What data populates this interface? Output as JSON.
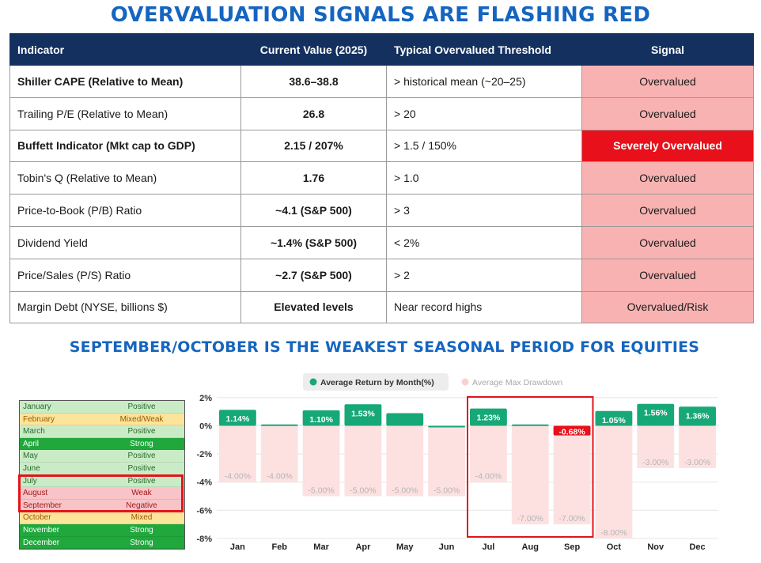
{
  "title": "OVERVALUATION SIGNALS ARE FLASHING RED",
  "table": {
    "headers": [
      "Indicator",
      "Current Value (2025)",
      "Typical Overvalued Threshold",
      "Signal"
    ],
    "rows": [
      {
        "indicator": "Shiller CAPE (Relative to Mean)",
        "value": "38.6–38.8",
        "threshold": "> historical mean (~20–25)",
        "signal": "Overvalued"
      },
      {
        "indicator": "Trailing P/E (Relative to Mean)",
        "value": "26.8",
        "threshold": "> 20",
        "signal": "Overvalued"
      },
      {
        "indicator": "Buffett Indicator (Mkt cap to GDP)",
        "value": "2.15 / 207%",
        "threshold": "> 1.5 / 150%",
        "signal": "Severely Overvalued"
      },
      {
        "indicator": "Tobin's Q (Relative to Mean)",
        "value": "1.76",
        "threshold": "> 1.0",
        "signal": "Overvalued"
      },
      {
        "indicator": "Price-to-Book (P/B) Ratio",
        "value": "~4.1 (S&P 500)",
        "threshold": "> 3",
        "signal": "Overvalued"
      },
      {
        "indicator": "Dividend Yield",
        "value": "~1.4% (S&P 500)",
        "threshold": "< 2%",
        "signal": "Overvalued"
      },
      {
        "indicator": "Price/Sales (P/S) Ratio",
        "value": "~2.7 (S&P 500)",
        "threshold": "> 2",
        "signal": "Overvalued"
      },
      {
        "indicator": "Margin Debt (NYSE, billions $)",
        "value": "Elevated levels",
        "threshold": "Near record highs",
        "signal": "Overvalued/Risk"
      }
    ]
  },
  "subtitle": "SEPTEMBER/OCTOBER IS THE WEAKEST SEASONAL PERIOD FOR EQUITIES",
  "seasonality": [
    {
      "month": "January",
      "status": "Positive",
      "bg": "#c9ecc7",
      "fg": "#2a6a2a"
    },
    {
      "month": "February",
      "status": "Mixed/Weak",
      "bg": "#fce49a",
      "fg": "#9a5a00"
    },
    {
      "month": "March",
      "status": "Positive",
      "bg": "#c9ecc7",
      "fg": "#2a6a2a"
    },
    {
      "month": "April",
      "status": "Strong",
      "bg": "#20a83c",
      "fg": "#ffffff"
    },
    {
      "month": "May",
      "status": "Positive",
      "bg": "#c9ecc7",
      "fg": "#2a6a2a"
    },
    {
      "month": "June",
      "status": "Positive",
      "bg": "#c9ecc7",
      "fg": "#2a6a2a"
    },
    {
      "month": "July",
      "status": "Positive",
      "bg": "#c9ecc7",
      "fg": "#2a6a2a"
    },
    {
      "month": "August",
      "status": "Weak",
      "bg": "#f8c4c8",
      "fg": "#a01818"
    },
    {
      "month": "September",
      "status": "Negative",
      "bg": "#f8c4c8",
      "fg": "#a01818"
    },
    {
      "month": "October",
      "status": "Mixed",
      "bg": "#fce49a",
      "fg": "#9a5a00"
    },
    {
      "month": "November",
      "status": "Strong",
      "bg": "#20a83c",
      "fg": "#ffffff"
    },
    {
      "month": "December",
      "status": "Strong",
      "bg": "#20a83c",
      "fg": "#ffffff"
    }
  ],
  "chart_data": {
    "type": "bar",
    "categories": [
      "Jan",
      "Feb",
      "Mar",
      "Apr",
      "May",
      "Jun",
      "Jul",
      "Aug",
      "Sep",
      "Oct",
      "Nov",
      "Dec"
    ],
    "series": [
      {
        "name": "Average Return by Month(%)",
        "color": "#17a877",
        "values": [
          1.14,
          0.1,
          1.1,
          1.53,
          0.9,
          0.0,
          1.23,
          0.1,
          -0.68,
          1.05,
          1.56,
          1.36
        ],
        "labels": [
          "1.14%",
          "",
          "1.10%",
          "1.53%",
          "",
          "",
          "1.23%",
          "",
          "-0.68%",
          "1.05%",
          "1.56%",
          "1.36%"
        ]
      },
      {
        "name": "Average Max Drawdown",
        "color": "#fde1e1",
        "values": [
          -4.0,
          -4.0,
          -5.0,
          -5.0,
          -5.0,
          -5.0,
          -4.0,
          -7.0,
          -7.0,
          -8.0,
          -3.0,
          -3.0
        ],
        "labels": [
          "-4.00%",
          "-4.00%",
          "-5.00%",
          "-5.00%",
          "-5.00%",
          "-5.00%",
          "-4.00%",
          "-7.00%",
          "-7.00%",
          "-8.00%",
          "-3.00%",
          "-3.00%"
        ]
      }
    ],
    "yticks": [
      "2%",
      "0%",
      "-2%",
      "-4%",
      "-6%",
      "-8%"
    ],
    "ylim": [
      -8,
      2
    ],
    "negative_color": "#e8101a",
    "highlight": [
      "Jul",
      "Aug",
      "Sep"
    ],
    "grid": true,
    "legend": "top-center"
  }
}
